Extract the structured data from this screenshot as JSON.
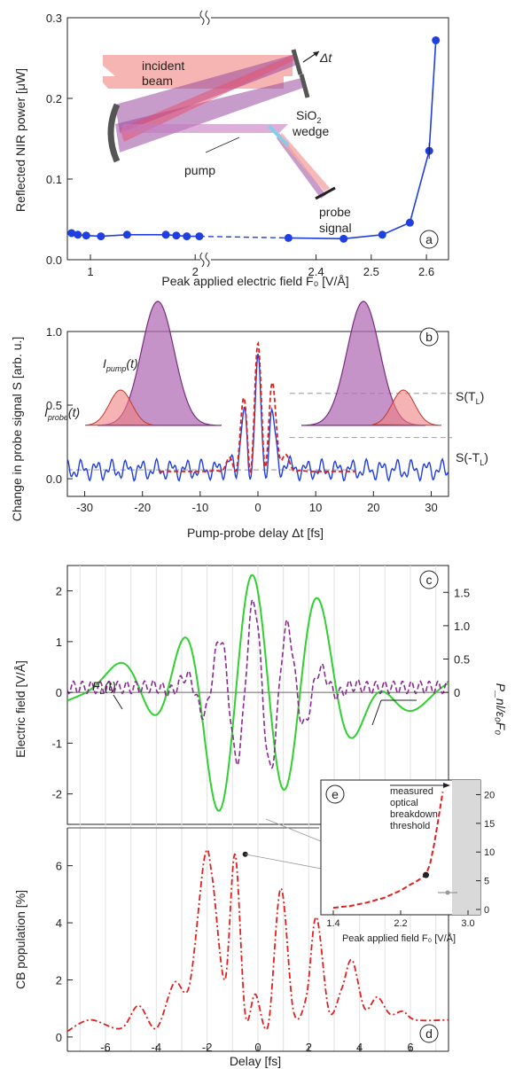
{
  "chart_data": [
    {
      "id": "a",
      "type": "line",
      "panel_label": "a",
      "xlabel": "Peak applied electric field F₀ [V/Å]",
      "ylabel": "Reflected NIR power [μW]",
      "x_ticks_left": [
        "1",
        "2"
      ],
      "x_ticks_right": [
        "2.4",
        "2.5",
        "2.6"
      ],
      "y_ticks": [
        "0.0",
        "0.1",
        "0.2",
        "0.3"
      ],
      "ylim": [
        0,
        0.3
      ],
      "axis_break": true,
      "series": [
        {
          "segment": "low",
          "x": [
            0.82,
            0.88,
            0.96,
            1.1,
            1.35,
            1.72,
            1.82,
            1.92,
            2.04
          ],
          "y": [
            0.033,
            0.031,
            0.03,
            0.029,
            0.031,
            0.031,
            0.03,
            0.029,
            0.029
          ]
        },
        {
          "segment": "high",
          "x": [
            2.35,
            2.45,
            2.52,
            2.57,
            2.605,
            2.617
          ],
          "y": [
            0.027,
            0.026,
            0.031,
            0.046,
            0.135,
            0.272
          ]
        }
      ],
      "inset_labels": {
        "incident": "incident",
        "beam": "beam",
        "pump": "pump",
        "wedge_sio": "SiO",
        "wedge_sub": "2",
        "wedge": "wedge",
        "probe": "probe",
        "signal": "signal",
        "delay": "Δt"
      }
    },
    {
      "id": "b",
      "type": "line",
      "panel_label": "b",
      "xlabel": "Pump-probe delay Δt [fs]",
      "ylabel": "Change in probe signal S [arb. u.]",
      "xlim": [
        -33,
        33
      ],
      "ylim": [
        -0.12,
        1.0
      ],
      "x_ticks": [
        "-30",
        "-20",
        "-10",
        "0",
        "10",
        "20",
        "30"
      ],
      "y_ticks": [
        "0.0",
        "0.5",
        "1.0"
      ],
      "annotations": {
        "s_tl": "S(T",
        "s_tl_sub": "L",
        "s_tl_end": ")",
        "s_mtl": "S(-T",
        "s_mtl_sub": "L",
        "s_mtl_end": ")",
        "i_pump": "I",
        "i_pump_sub": "pump",
        "i_pump_end": "(t)",
        "i_probe": "I",
        "i_probe_sub": "probe",
        "i_probe_end": "(t)"
      },
      "reference_levels": [
        0.58,
        0.28,
        0.06
      ]
    },
    {
      "id": "c",
      "type": "line",
      "panel_label": "c",
      "xlabel": "",
      "ylabel": "Electric field [V/Å]",
      "ylabel_right": "P_nl/ε₀F₀",
      "y_ticks": [
        "-2",
        "-1",
        "0",
        "1",
        "2"
      ],
      "y_ticks_right": [
        "0",
        "0.5",
        "1.0",
        "1.5"
      ],
      "ylim": [
        -2.6,
        2.5
      ],
      "trace_label": "F",
      "trace_label_sub": "L",
      "trace_label_end": "(t)"
    },
    {
      "id": "d",
      "type": "line",
      "panel_label": "d",
      "xlabel": "Delay [fs]",
      "ylabel": "CB population [%]",
      "xlim": [
        -7.5,
        7.5
      ],
      "ylim": [
        -0.5,
        7.2
      ],
      "x_ticks": [
        "-6",
        "-4",
        "-2",
        "0",
        "2",
        "4",
        "6"
      ],
      "y_ticks": [
        "0",
        "2",
        "4",
        "6"
      ],
      "envelope": {
        "x": [
          -7.5,
          -6.6,
          -5.4,
          -4.7,
          -4.0,
          -3.3,
          -2.7,
          -2.1,
          -1.8,
          -1.3,
          -0.9,
          -0.5,
          -0.1,
          0.4,
          0.9,
          1.4,
          1.9,
          2.3,
          2.8,
          3.3,
          3.7,
          4.2,
          4.7,
          5.2,
          5.7,
          6.2,
          7.5
        ],
        "y": [
          0.2,
          0.6,
          0.3,
          1.1,
          0.3,
          1.9,
          1.8,
          6.3,
          5.6,
          2.0,
          6.4,
          0.8,
          1.5,
          0.4,
          5.2,
          0.9,
          1.4,
          4.2,
          0.9,
          1.7,
          2.7,
          1.0,
          1.4,
          0.8,
          0.9,
          0.6,
          0.6
        ]
      }
    },
    {
      "id": "e",
      "type": "line",
      "panel_label": "e",
      "xlabel": "Peak applied field F₀ [V/Å]",
      "x_ticks": [
        "1.4",
        "2.2",
        "3.0"
      ],
      "y_ticks": [
        "0",
        "5",
        "10",
        "15",
        "20"
      ],
      "xlim": [
        1.4,
        3.0
      ],
      "ylim": [
        0,
        21
      ],
      "annotation_lines": [
        "measured",
        "optical",
        "breakdown",
        "threshold"
      ],
      "curve": {
        "x": [
          1.4,
          1.6,
          1.8,
          2.0,
          2.2,
          2.3,
          2.4,
          2.5,
          2.55,
          2.6,
          2.65,
          2.7
        ],
        "y": [
          0.3,
          0.6,
          1.2,
          2.0,
          3.3,
          4.2,
          5.0,
          6.0,
          8.0,
          11.5,
          16.0,
          20.5
        ]
      },
      "marker": {
        "x": 2.5,
        "y": 6.0
      }
    }
  ]
}
